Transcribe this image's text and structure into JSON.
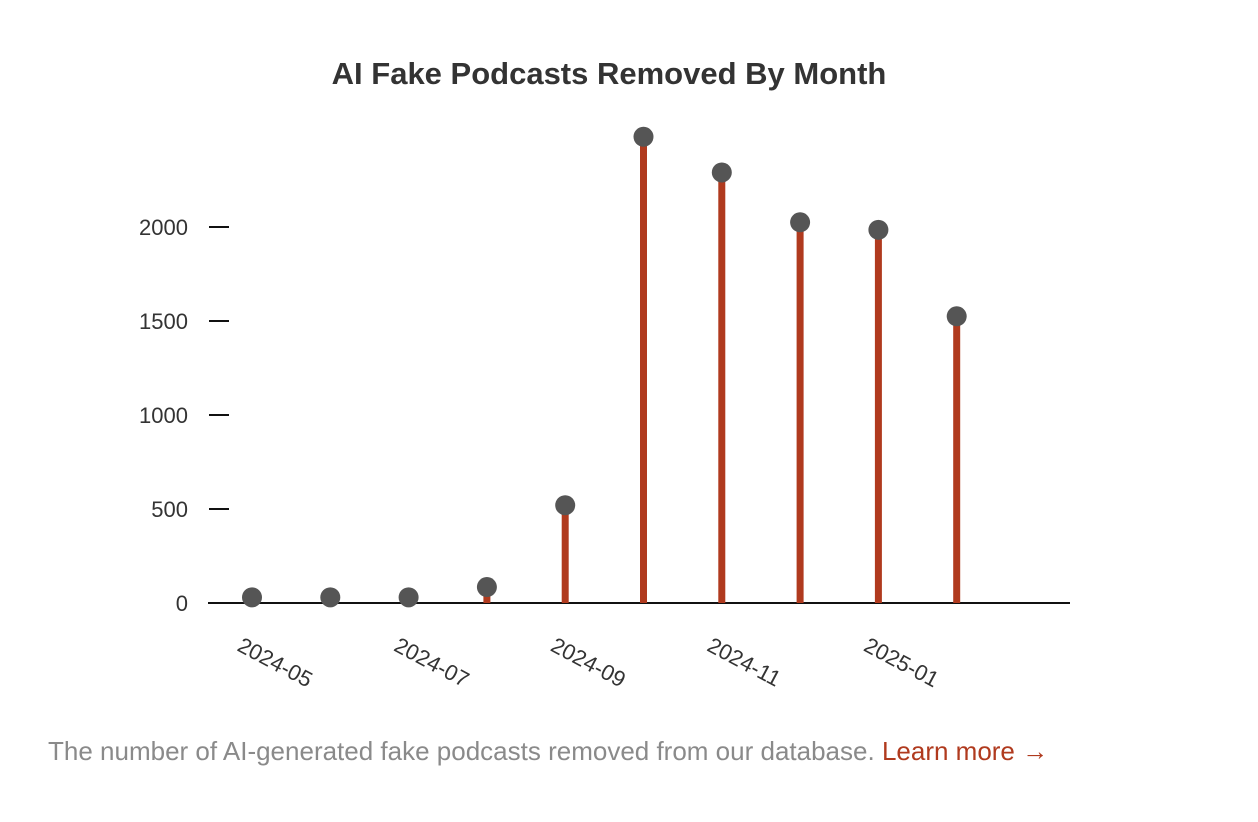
{
  "chart_data": {
    "type": "lollipop",
    "title": "AI Fake Podcasts Removed By Month",
    "xlabel": "",
    "ylabel": "",
    "x_ticks": [
      "2024-05",
      "2024-07",
      "2024-09",
      "2024-11",
      "2025-01"
    ],
    "y_ticks": [
      "0",
      "500",
      "1000",
      "1500",
      "2000"
    ],
    "ylim": [
      0,
      2500
    ],
    "grid": false,
    "points": [
      {
        "month": "2024-05",
        "value": 30
      },
      {
        "month": "2024-06",
        "value": 30
      },
      {
        "month": "2024-07",
        "value": 30
      },
      {
        "month": "2024-08",
        "value": 85
      },
      {
        "month": "2024-09",
        "value": 520
      },
      {
        "month": "2024-10",
        "value": 2480
      },
      {
        "month": "2024-11",
        "value": 2290
      },
      {
        "month": "2024-12",
        "value": 2025
      },
      {
        "month": "2025-01",
        "value": 1985
      },
      {
        "month": "2025-02",
        "value": 1525
      }
    ],
    "colors": {
      "stem": "#b03a1e",
      "dot": "#555555",
      "axis": "#111111",
      "text": "#333333"
    }
  },
  "caption": {
    "text": "The number of AI-generated fake podcasts removed from our database.",
    "link_label": "Learn more →"
  }
}
